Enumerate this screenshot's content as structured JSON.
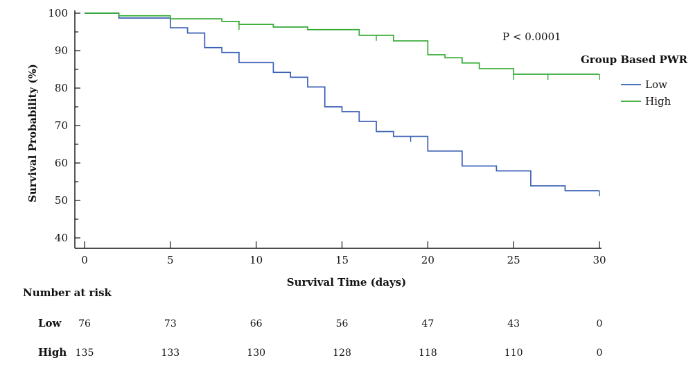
{
  "chart_data": {
    "type": "line",
    "subtype": "kaplan-meier",
    "xlabel": "Survival Time (days)",
    "ylabel": "Survival Probability (%)",
    "xlim": [
      0,
      30
    ],
    "ylim": [
      40,
      100
    ],
    "xticks": [
      0,
      5,
      10,
      15,
      20,
      25,
      30
    ],
    "yticks": [
      40,
      50,
      60,
      70,
      80,
      90,
      100
    ],
    "grid": false,
    "legend": {
      "title": "Group Based PWR",
      "placement": "right",
      "entries": [
        {
          "name": "Low",
          "color": "#3a5fb5"
        },
        {
          "name": "High",
          "color": "#33aa33"
        }
      ]
    },
    "annotation": "P < 0.0001",
    "series": [
      {
        "name": "Low",
        "color": "#3a5fb5",
        "steps": [
          [
            0,
            100
          ],
          [
            2,
            98.7
          ],
          [
            5,
            96.1
          ],
          [
            6,
            94.7
          ],
          [
            7,
            90.8
          ],
          [
            8,
            89.5
          ],
          [
            9,
            86.8
          ],
          [
            11,
            84.2
          ],
          [
            12,
            82.9
          ],
          [
            13,
            80.3
          ],
          [
            14,
            75
          ],
          [
            15,
            73.7
          ],
          [
            16,
            71.1
          ],
          [
            17,
            68.4
          ],
          [
            18,
            67.1
          ],
          [
            20,
            63.2
          ],
          [
            22,
            59.2
          ],
          [
            24,
            57.9
          ],
          [
            26,
            53.9
          ],
          [
            28,
            52.6
          ],
          [
            30,
            52.6
          ]
        ],
        "censored": [
          [
            19,
            67.1
          ],
          [
            30,
            52.6
          ]
        ]
      },
      {
        "name": "High",
        "color": "#33aa33",
        "steps": [
          [
            0,
            100
          ],
          [
            2,
            99.3
          ],
          [
            5,
            98.5
          ],
          [
            8,
            97.8
          ],
          [
            9,
            97
          ],
          [
            11,
            96.3
          ],
          [
            13,
            95.6
          ],
          [
            16,
            94.1
          ],
          [
            18,
            92.6
          ],
          [
            20,
            88.9
          ],
          [
            21,
            88.1
          ],
          [
            22,
            86.7
          ],
          [
            23,
            85.2
          ],
          [
            25,
            83.7
          ],
          [
            30,
            83.7
          ]
        ],
        "censored": [
          [
            9,
            97
          ],
          [
            17,
            94.1
          ],
          [
            25,
            83.7
          ],
          [
            27,
            83.7
          ],
          [
            30,
            83.7
          ]
        ]
      }
    ],
    "risk_table": {
      "title": "Number at risk",
      "times": [
        0,
        5,
        10,
        15,
        20,
        25,
        30
      ],
      "rows": [
        {
          "label": "Low",
          "values": [
            "76",
            "73",
            "66",
            "56",
            "47",
            "43",
            "0"
          ]
        },
        {
          "label": "High",
          "values": [
            "135",
            "133",
            "130",
            "128",
            "118",
            "110",
            "0"
          ]
        }
      ]
    }
  }
}
